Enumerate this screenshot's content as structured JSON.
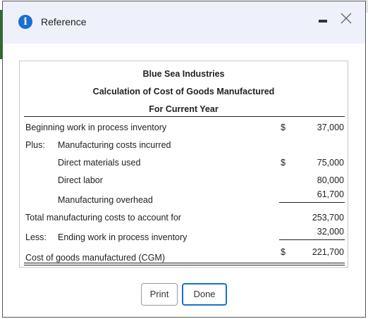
{
  "window": {
    "title": "Reference",
    "icon": "info-icon"
  },
  "report": {
    "company": "Blue Sea Industries",
    "statement": "Calculation of Cost of Goods Manufactured",
    "period": "For Current Year",
    "rows": [
      {
        "label": "Beginning work in process inventory",
        "dollar": "$",
        "value": "37,000"
      },
      {
        "prefix": "Plus:",
        "label": "Manufacturing costs incurred"
      },
      {
        "label": "Direct materials used",
        "dollar": "$",
        "value": "75,000"
      },
      {
        "label": "Direct labor",
        "value": "80,000"
      },
      {
        "label": "Manufacturing overhead",
        "value": "61,700"
      },
      {
        "label": "Total manufacturing costs to account for",
        "value": "253,700"
      },
      {
        "prefix": "Less:",
        "label": "Ending work in process inventory",
        "value": "32,000"
      },
      {
        "label": "Cost of goods manufactured (CGM)",
        "dollar": "$",
        "value": "221,700"
      }
    ]
  },
  "buttons": {
    "print": "Print",
    "done": "Done"
  },
  "colors": {
    "accent": "#1a6fd1",
    "titlebar_bg": "#eef1fa"
  }
}
